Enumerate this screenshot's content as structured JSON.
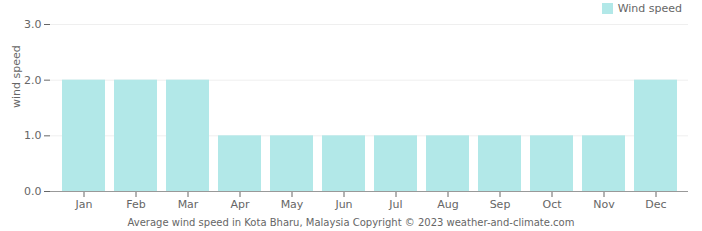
{
  "chart_data": {
    "type": "bar",
    "title": "Average wind speed in Kota Bharu, Malaysia   Copyright © 2023  weather-and-climate.com",
    "categories": [
      "Jan",
      "Feb",
      "Mar",
      "Apr",
      "May",
      "Jun",
      "Jul",
      "Aug",
      "Sep",
      "Oct",
      "Nov",
      "Dec"
    ],
    "series": [
      {
        "name": "Wind speed",
        "color": "#b2e8e8",
        "values": [
          2,
          2,
          2,
          1,
          1,
          1,
          1,
          1,
          1,
          1,
          1,
          2
        ]
      }
    ],
    "y_label": "wind speed",
    "ylim": [
      0,
      3
    ],
    "yticks": [
      0,
      1,
      2,
      3
    ],
    "grid": true,
    "legend": "upper right"
  }
}
